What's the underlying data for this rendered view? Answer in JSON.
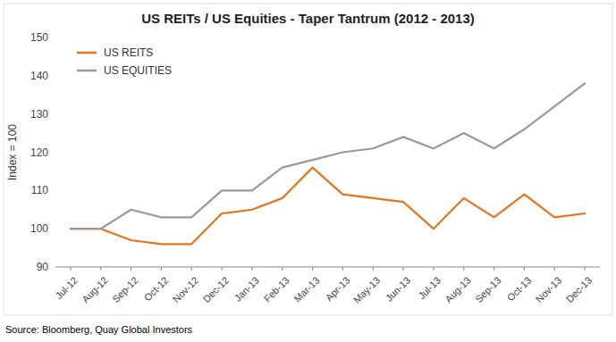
{
  "chart_data": {
    "type": "line",
    "title": "US REITs / US Equities - Taper Tantrum (2012 - 2013)",
    "y_label": "Index = 100",
    "annotations": [
      "Source: Bloomberg, Quay Global Investors"
    ],
    "categories": [
      "Jul-12",
      "Aug-12",
      "Sep-12",
      "Oct-12",
      "Nov-12",
      "Dec-12",
      "Jan-13",
      "Feb-13",
      "Mar-13",
      "Apr-13",
      "May-13",
      "Jun-13",
      "Jul-13",
      "Aug-13",
      "Sep-13",
      "Oct-13",
      "Nov-13",
      "Dec-13"
    ],
    "series": [
      {
        "name": "US REITS",
        "color": "#E8731A",
        "values": [
          100,
          100,
          97,
          96,
          96,
          104,
          105,
          108,
          116,
          109,
          108,
          107,
          100,
          108,
          103,
          109,
          103,
          104
        ]
      },
      {
        "name": "US EQUITIES",
        "color": "#999999",
        "values": [
          100,
          100,
          105,
          103,
          103,
          110,
          110,
          116,
          118,
          120,
          121,
          124,
          121,
          125,
          121,
          126,
          132,
          138
        ]
      }
    ],
    "ylim": [
      90,
      150
    ],
    "yticks": [
      90,
      100,
      110,
      120,
      130,
      140,
      150
    ],
    "grid": false,
    "legend": "upper left"
  }
}
